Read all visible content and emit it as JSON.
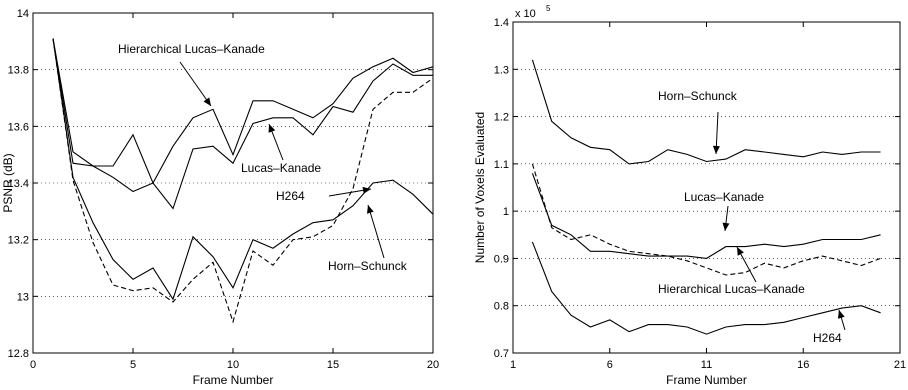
{
  "chart_data": [
    {
      "type": "line",
      "xlabel": "Frame Number",
      "ylabel": "PSNR (dB)",
      "xlim": [
        0,
        20
      ],
      "ylim": [
        12.8,
        14
      ],
      "xticks": [
        "0",
        "5",
        "10",
        "15",
        "20"
      ],
      "yticks": [
        "12.8",
        "13",
        "13.2",
        "13.4",
        "13.6",
        "13.8",
        "14"
      ],
      "grid": "horizontal dotted",
      "series": [
        {
          "name": "Hierarchical Lucas–Kanade",
          "style": "solid",
          "x": [
            1,
            2,
            3,
            4,
            5,
            6,
            7,
            8,
            9,
            10,
            11,
            12,
            13,
            14,
            15,
            16,
            17,
            18,
            19,
            20
          ],
          "y": [
            13.91,
            13.47,
            13.46,
            13.46,
            13.57,
            13.4,
            13.53,
            13.63,
            13.66,
            13.5,
            13.69,
            13.69,
            13.66,
            13.63,
            13.68,
            13.77,
            13.81,
            13.84,
            13.79,
            13.81
          ]
        },
        {
          "name": "Lucas–Kanade",
          "style": "solid",
          "x": [
            1,
            2,
            3,
            4,
            5,
            6,
            7,
            8,
            9,
            10,
            11,
            12,
            13,
            14,
            15,
            16,
            17,
            18,
            19,
            20
          ],
          "y": [
            13.91,
            13.51,
            13.46,
            13.42,
            13.37,
            13.4,
            13.31,
            13.52,
            13.53,
            13.47,
            13.61,
            13.63,
            13.63,
            13.57,
            13.67,
            13.65,
            13.76,
            13.82,
            13.78,
            13.78
          ]
        },
        {
          "name": "H264",
          "style": "dashed",
          "x": [
            1,
            2,
            3,
            4,
            5,
            6,
            7,
            8,
            9,
            10,
            11,
            12,
            13,
            14,
            15,
            16,
            17,
            18,
            19,
            20
          ],
          "y": [
            13.91,
            13.41,
            13.19,
            13.04,
            13.02,
            13.03,
            12.98,
            13.06,
            13.12,
            12.91,
            13.16,
            13.11,
            13.2,
            13.21,
            13.25,
            13.38,
            13.66,
            13.72,
            13.72,
            13.77
          ]
        },
        {
          "name": "Horn–Schunck",
          "style": "solid",
          "x": [
            1,
            2,
            3,
            4,
            5,
            6,
            7,
            8,
            9,
            10,
            11,
            12,
            13,
            14,
            15,
            16,
            17,
            18,
            19,
            20
          ],
          "y": [
            13.91,
            13.42,
            13.26,
            13.13,
            13.06,
            13.1,
            12.99,
            13.21,
            13.14,
            13.03,
            13.2,
            13.17,
            13.22,
            13.26,
            13.27,
            13.32,
            13.4,
            13.41,
            13.36,
            13.29
          ]
        }
      ],
      "annotations": [
        "Hierarchical Lucas–Kanade",
        "Lucas–Kanade",
        "H264",
        "Horn–Schunck"
      ]
    },
    {
      "type": "line",
      "xlabel": "Frame Number",
      "ylabel": "Number of Voxels Evaluated",
      "multiplier": "x 10",
      "multiplier_exp": "5",
      "xlim": [
        1,
        21
      ],
      "ylim": [
        0.7,
        1.4
      ],
      "xticks": [
        "1",
        "6",
        "11",
        "16",
        "21"
      ],
      "yticks": [
        "0.7",
        "0.8",
        "0.9",
        "1",
        "1.1",
        "1.2",
        "1.3",
        "1.4"
      ],
      "grid": "horizontal dotted",
      "series": [
        {
          "name": "Horn–Schunck",
          "style": "solid",
          "x": [
            2,
            3,
            4,
            5,
            6,
            7,
            8,
            9,
            10,
            11,
            12,
            13,
            14,
            15,
            16,
            17,
            18,
            19,
            20
          ],
          "y": [
            1.32,
            1.19,
            1.155,
            1.135,
            1.13,
            1.1,
            1.105,
            1.13,
            1.12,
            1.105,
            1.11,
            1.13,
            1.125,
            1.12,
            1.115,
            1.125,
            1.12,
            1.125,
            1.125
          ]
        },
        {
          "name": "Lucas–Kanade",
          "style": "solid",
          "x": [
            2,
            3,
            4,
            5,
            6,
            7,
            8,
            9,
            10,
            11,
            12,
            13,
            14,
            15,
            16,
            17,
            18,
            19,
            20
          ],
          "y": [
            1.08,
            0.97,
            0.95,
            0.915,
            0.915,
            0.91,
            0.905,
            0.905,
            0.905,
            0.9,
            0.925,
            0.925,
            0.93,
            0.925,
            0.93,
            0.94,
            0.94,
            0.94,
            0.95
          ]
        },
        {
          "name": "Hierarchical Lucas–Kanade",
          "style": "dashed",
          "x": [
            2,
            3,
            4,
            5,
            6,
            7,
            8,
            9,
            10,
            11,
            12,
            13,
            14,
            15,
            16,
            17,
            18,
            19,
            20
          ],
          "y": [
            1.1,
            0.965,
            0.94,
            0.95,
            0.93,
            0.915,
            0.91,
            0.905,
            0.895,
            0.88,
            0.865,
            0.87,
            0.89,
            0.88,
            0.895,
            0.905,
            0.895,
            0.885,
            0.9
          ]
        },
        {
          "name": "H264",
          "style": "solid",
          "x": [
            2,
            3,
            4,
            5,
            6,
            7,
            8,
            9,
            10,
            11,
            12,
            13,
            14,
            15,
            16,
            17,
            18,
            19,
            20
          ],
          "y": [
            0.935,
            0.83,
            0.78,
            0.755,
            0.77,
            0.745,
            0.76,
            0.76,
            0.755,
            0.74,
            0.755,
            0.76,
            0.76,
            0.765,
            0.775,
            0.785,
            0.795,
            0.8,
            0.785
          ]
        }
      ],
      "annotations": [
        "Horn–Schunck",
        "Lucas–Kanade",
        "Hierarchical Lucas–Kanade",
        "H264"
      ]
    }
  ]
}
